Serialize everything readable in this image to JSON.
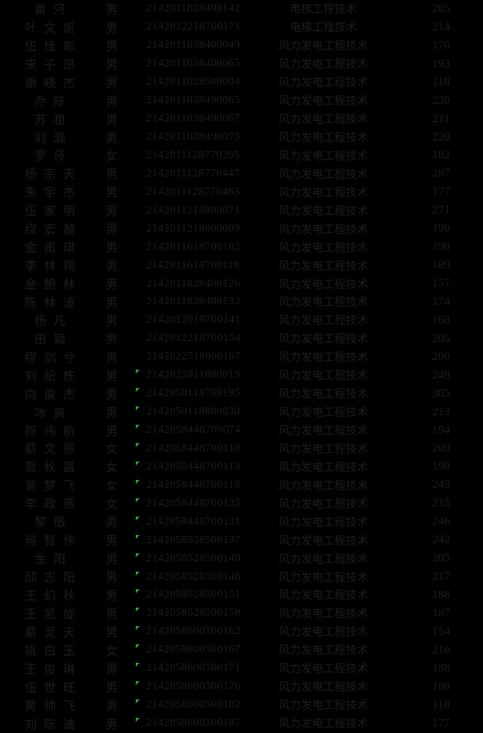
{
  "colors": {
    "background": "#000000",
    "text": "#1c1c1c",
    "flag_triangle": "#2e9e2e"
  },
  "table": {
    "column_names": [
      "name",
      "gender",
      "exam_id",
      "major",
      "score"
    ],
    "majors": {
      "elevator": "电梯工程技术",
      "wind_power": "风力发电工程技术"
    },
    "rows": [
      {
        "name": "黄河",
        "gender": "男",
        "exam_id": "2142011828400142",
        "major": "电梯工程技术",
        "score": "205",
        "flag": false
      },
      {
        "name": "叶文凯",
        "gender": "男",
        "exam_id": "2142012218700171",
        "major": "电梯工程技术",
        "score": "214",
        "flag": false
      },
      {
        "name": "伍佳彰",
        "gender": "男",
        "exam_id": "2142011038400049",
        "major": "风力发电工程技术",
        "score": "170",
        "flag": false
      },
      {
        "name": "宋子昂",
        "gender": "男",
        "exam_id": "2142011038400065",
        "major": "风力发电工程技术",
        "score": "193",
        "flag": false
      },
      {
        "name": "谢晓杰",
        "gender": "男",
        "exam_id": "2142011028500004",
        "major": "风力发电工程技术",
        "score": "118",
        "flag": false
      },
      {
        "name": "乔陈",
        "gender": "男",
        "exam_id": "2142011038490065",
        "major": "风力发电工程技术",
        "score": "220",
        "flag": false
      },
      {
        "name": "苏祖",
        "gender": "男",
        "exam_id": "2142011038490067",
        "major": "风力发电工程技术",
        "score": "211",
        "flag": false
      },
      {
        "name": "刘瀚",
        "gender": "男",
        "exam_id": "2142011038490075",
        "major": "风力发电工程技术",
        "score": "220",
        "flag": false
      },
      {
        "name": "罗莎",
        "gender": "女",
        "exam_id": "2142011128770395",
        "major": "风力发电工程技术",
        "score": "182",
        "flag": false
      },
      {
        "name": "杨宗天",
        "gender": "男",
        "exam_id": "2142011128770447",
        "major": "风力发电工程技术",
        "score": "287",
        "flag": false
      },
      {
        "name": "朱宇杰",
        "gender": "男",
        "exam_id": "2142011128770463",
        "major": "风力发电工程技术",
        "score": "177",
        "flag": false
      },
      {
        "name": "伍家明",
        "gender": "男",
        "exam_id": "2142011218800071",
        "major": "风力发电工程技术",
        "score": "271",
        "flag": false
      },
      {
        "name": "缪宏越",
        "gender": "男",
        "exam_id": "2142011218800089",
        "major": "风力发电工程技术",
        "score": "199",
        "flag": false
      },
      {
        "name": "金甫琪",
        "gender": "男",
        "exam_id": "2142011618700102",
        "major": "风力发电工程技术",
        "score": "190",
        "flag": false
      },
      {
        "name": "李林翔",
        "gender": "男",
        "exam_id": "2142011618700118",
        "major": "风力发电工程技术",
        "score": "189",
        "flag": false
      },
      {
        "name": "金鲍林",
        "gender": "男",
        "exam_id": "2142011828400126",
        "major": "风力发电工程技术",
        "score": "157",
        "flag": false
      },
      {
        "name": "陈林波",
        "gender": "男",
        "exam_id": "2142011828400133",
        "major": "风力发电工程技术",
        "score": "174",
        "flag": false
      },
      {
        "name": "杨凡",
        "gender": "男",
        "exam_id": "2142012018700141",
        "major": "风力发电工程技术",
        "score": "168",
        "flag": false
      },
      {
        "name": "田颖",
        "gender": "男",
        "exam_id": "2142012218700154",
        "major": "风力发电工程技术",
        "score": "205",
        "flag": false
      },
      {
        "name": "缪剑兮",
        "gender": "男",
        "exam_id": "2142022518800167",
        "major": "风力发电工程技术",
        "score": "200",
        "flag": false
      },
      {
        "name": "刘纪栋",
        "gender": "男",
        "exam_id": "2142025011880019",
        "major": "风力发电工程技术",
        "score": "249",
        "flag": true
      },
      {
        "name": "向俊杰",
        "gender": "男",
        "exam_id": "2142050118700195",
        "major": "风力发电工程技术",
        "score": "305",
        "flag": true
      },
      {
        "name": "冰爽",
        "gender": "男",
        "exam_id": "2142050118800030",
        "major": "风力发电工程技术",
        "score": "213",
        "flag": true
      },
      {
        "name": "符伟航",
        "gender": "男",
        "exam_id": "2142058448700074",
        "major": "风力发电工程技术",
        "score": "194",
        "flag": true
      },
      {
        "name": "蔡文振",
        "gender": "女",
        "exam_id": "2142058448700110",
        "major": "风力发电工程技术",
        "score": "209",
        "flag": true
      },
      {
        "name": "贺秋昌",
        "gender": "女",
        "exam_id": "2142058448700113",
        "major": "风力发电工程技术",
        "score": "199",
        "flag": true
      },
      {
        "name": "曾梦飞",
        "gender": "女",
        "exam_id": "2142058448700118",
        "major": "风力发电工程技术",
        "score": "243",
        "flag": true
      },
      {
        "name": "李政燕",
        "gender": "女",
        "exam_id": "2142058448700125",
        "major": "风力发电工程技术",
        "score": "215",
        "flag": true
      },
      {
        "name": "黎傲",
        "gender": "男",
        "exam_id": "2142058448700131",
        "major": "风力发电工程技术",
        "score": "246",
        "flag": true
      },
      {
        "name": "何智伟",
        "gender": "男",
        "exam_id": "2142058528500137",
        "major": "风力发电工程技术",
        "score": "242",
        "flag": true
      },
      {
        "name": "金阳",
        "gender": "男",
        "exam_id": "2142058528500140",
        "major": "风力发电工程技术",
        "score": "205",
        "flag": true
      },
      {
        "name": "邱志阳",
        "gender": "男",
        "exam_id": "2142058528500146",
        "major": "风力发电工程技术",
        "score": "217",
        "flag": true
      },
      {
        "name": "王幻秋",
        "gender": "男",
        "exam_id": "2142058528500151",
        "major": "风力发电工程技术",
        "score": "188",
        "flag": true
      },
      {
        "name": "王凯旋",
        "gender": "男",
        "exam_id": "2142058528500158",
        "major": "风力发电工程技术",
        "score": "187",
        "flag": true
      },
      {
        "name": "蔡灵天",
        "gender": "男",
        "exam_id": "2142058600500162",
        "major": "风力发电工程技术",
        "score": "154",
        "flag": true
      },
      {
        "name": "姚白玉",
        "gender": "女",
        "exam_id": "2142058600500167",
        "major": "风力发电工程技术",
        "score": "216",
        "flag": true
      },
      {
        "name": "王俊琳",
        "gender": "男",
        "exam_id": "2142058600500171",
        "major": "风力发电工程技术",
        "score": "188",
        "flag": true
      },
      {
        "name": "伍世旺",
        "gender": "男",
        "exam_id": "2142058600500176",
        "major": "风力发电工程技术",
        "score": "180",
        "flag": true
      },
      {
        "name": "黄帅飞",
        "gender": "男",
        "exam_id": "2142058600500182",
        "major": "风力发电工程技术",
        "score": "118",
        "flag": true
      },
      {
        "name": "刘陈诚",
        "gender": "男",
        "exam_id": "2142058600500187",
        "major": "风力发电工程技术",
        "score": "177",
        "flag": true
      }
    ]
  }
}
